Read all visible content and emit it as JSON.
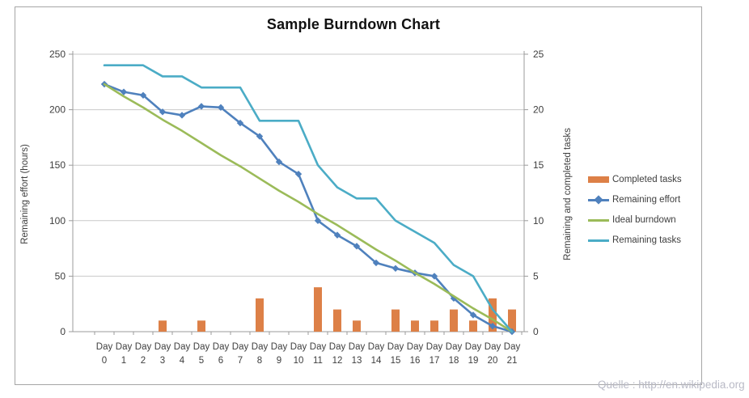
{
  "chart": {
    "title": "Sample Burndown Chart"
  },
  "chart_data": {
    "type": "combo",
    "title": "Sample Burndown Chart",
    "categories": [
      "Day 0",
      "Day 1",
      "Day 2",
      "Day 3",
      "Day 4",
      "Day 5",
      "Day 6",
      "Day 7",
      "Day 8",
      "Day 9",
      "Day 10",
      "Day 11",
      "Day 12",
      "Day 13",
      "Day 14",
      "Day 15",
      "Day 16",
      "Day 17",
      "Day 18",
      "Day 19",
      "Day 20",
      "Day 21"
    ],
    "left_axis": {
      "title": "Remaining effort (hours)",
      "range": [
        0,
        250
      ],
      "step": 50,
      "tick_labels": [
        "0",
        "50",
        "100",
        "150",
        "200",
        "250"
      ]
    },
    "right_axis": {
      "title": "Remaining and completed tasks",
      "range": [
        0,
        25
      ],
      "step": 5,
      "tick_labels": [
        "0",
        "5",
        "10",
        "15",
        "20",
        "25"
      ]
    },
    "grid": true,
    "legend_position": "right",
    "series": [
      {
        "name": "Completed tasks",
        "type": "bar",
        "axis": "right",
        "color": "#DD8047",
        "values": [
          0,
          0,
          0,
          1,
          0,
          1,
          0,
          0,
          3,
          0,
          0,
          4,
          2,
          1,
          0,
          2,
          1,
          1,
          2,
          1,
          3,
          2
        ]
      },
      {
        "name": "Remaining effort",
        "type": "line",
        "axis": "left",
        "color": "#4F81BD",
        "marker": "diamond",
        "values": [
          223,
          216,
          213,
          198,
          195,
          203,
          202,
          188,
          176,
          153,
          142,
          100,
          87,
          77,
          62,
          57,
          53,
          50,
          30,
          15,
          5,
          0
        ]
      },
      {
        "name": "Ideal burndown",
        "type": "line",
        "axis": "left",
        "color": "#9BBB59",
        "values": [
          223,
          212,
          202,
          191,
          181,
          170,
          159,
          149,
          138,
          127,
          117,
          106,
          96,
          85,
          74,
          64,
          53,
          43,
          32,
          21,
          11,
          0
        ]
      },
      {
        "name": "Remaining tasks",
        "type": "line",
        "axis": "right",
        "color": "#4BACC6",
        "values": [
          24,
          24,
          24,
          23,
          23,
          22,
          22,
          22,
          19,
          19,
          19,
          15,
          13,
          12,
          12,
          10,
          9,
          8,
          6,
          5,
          2,
          0
        ]
      }
    ]
  },
  "colors": {
    "grid": "#c9c9c9",
    "axis": "#9b9b9b",
    "tick_text": "#3e3e3e",
    "frame_border": "#a6a6a6"
  },
  "footer": {
    "source": "Quelle : http://en.wikipedia.org"
  }
}
